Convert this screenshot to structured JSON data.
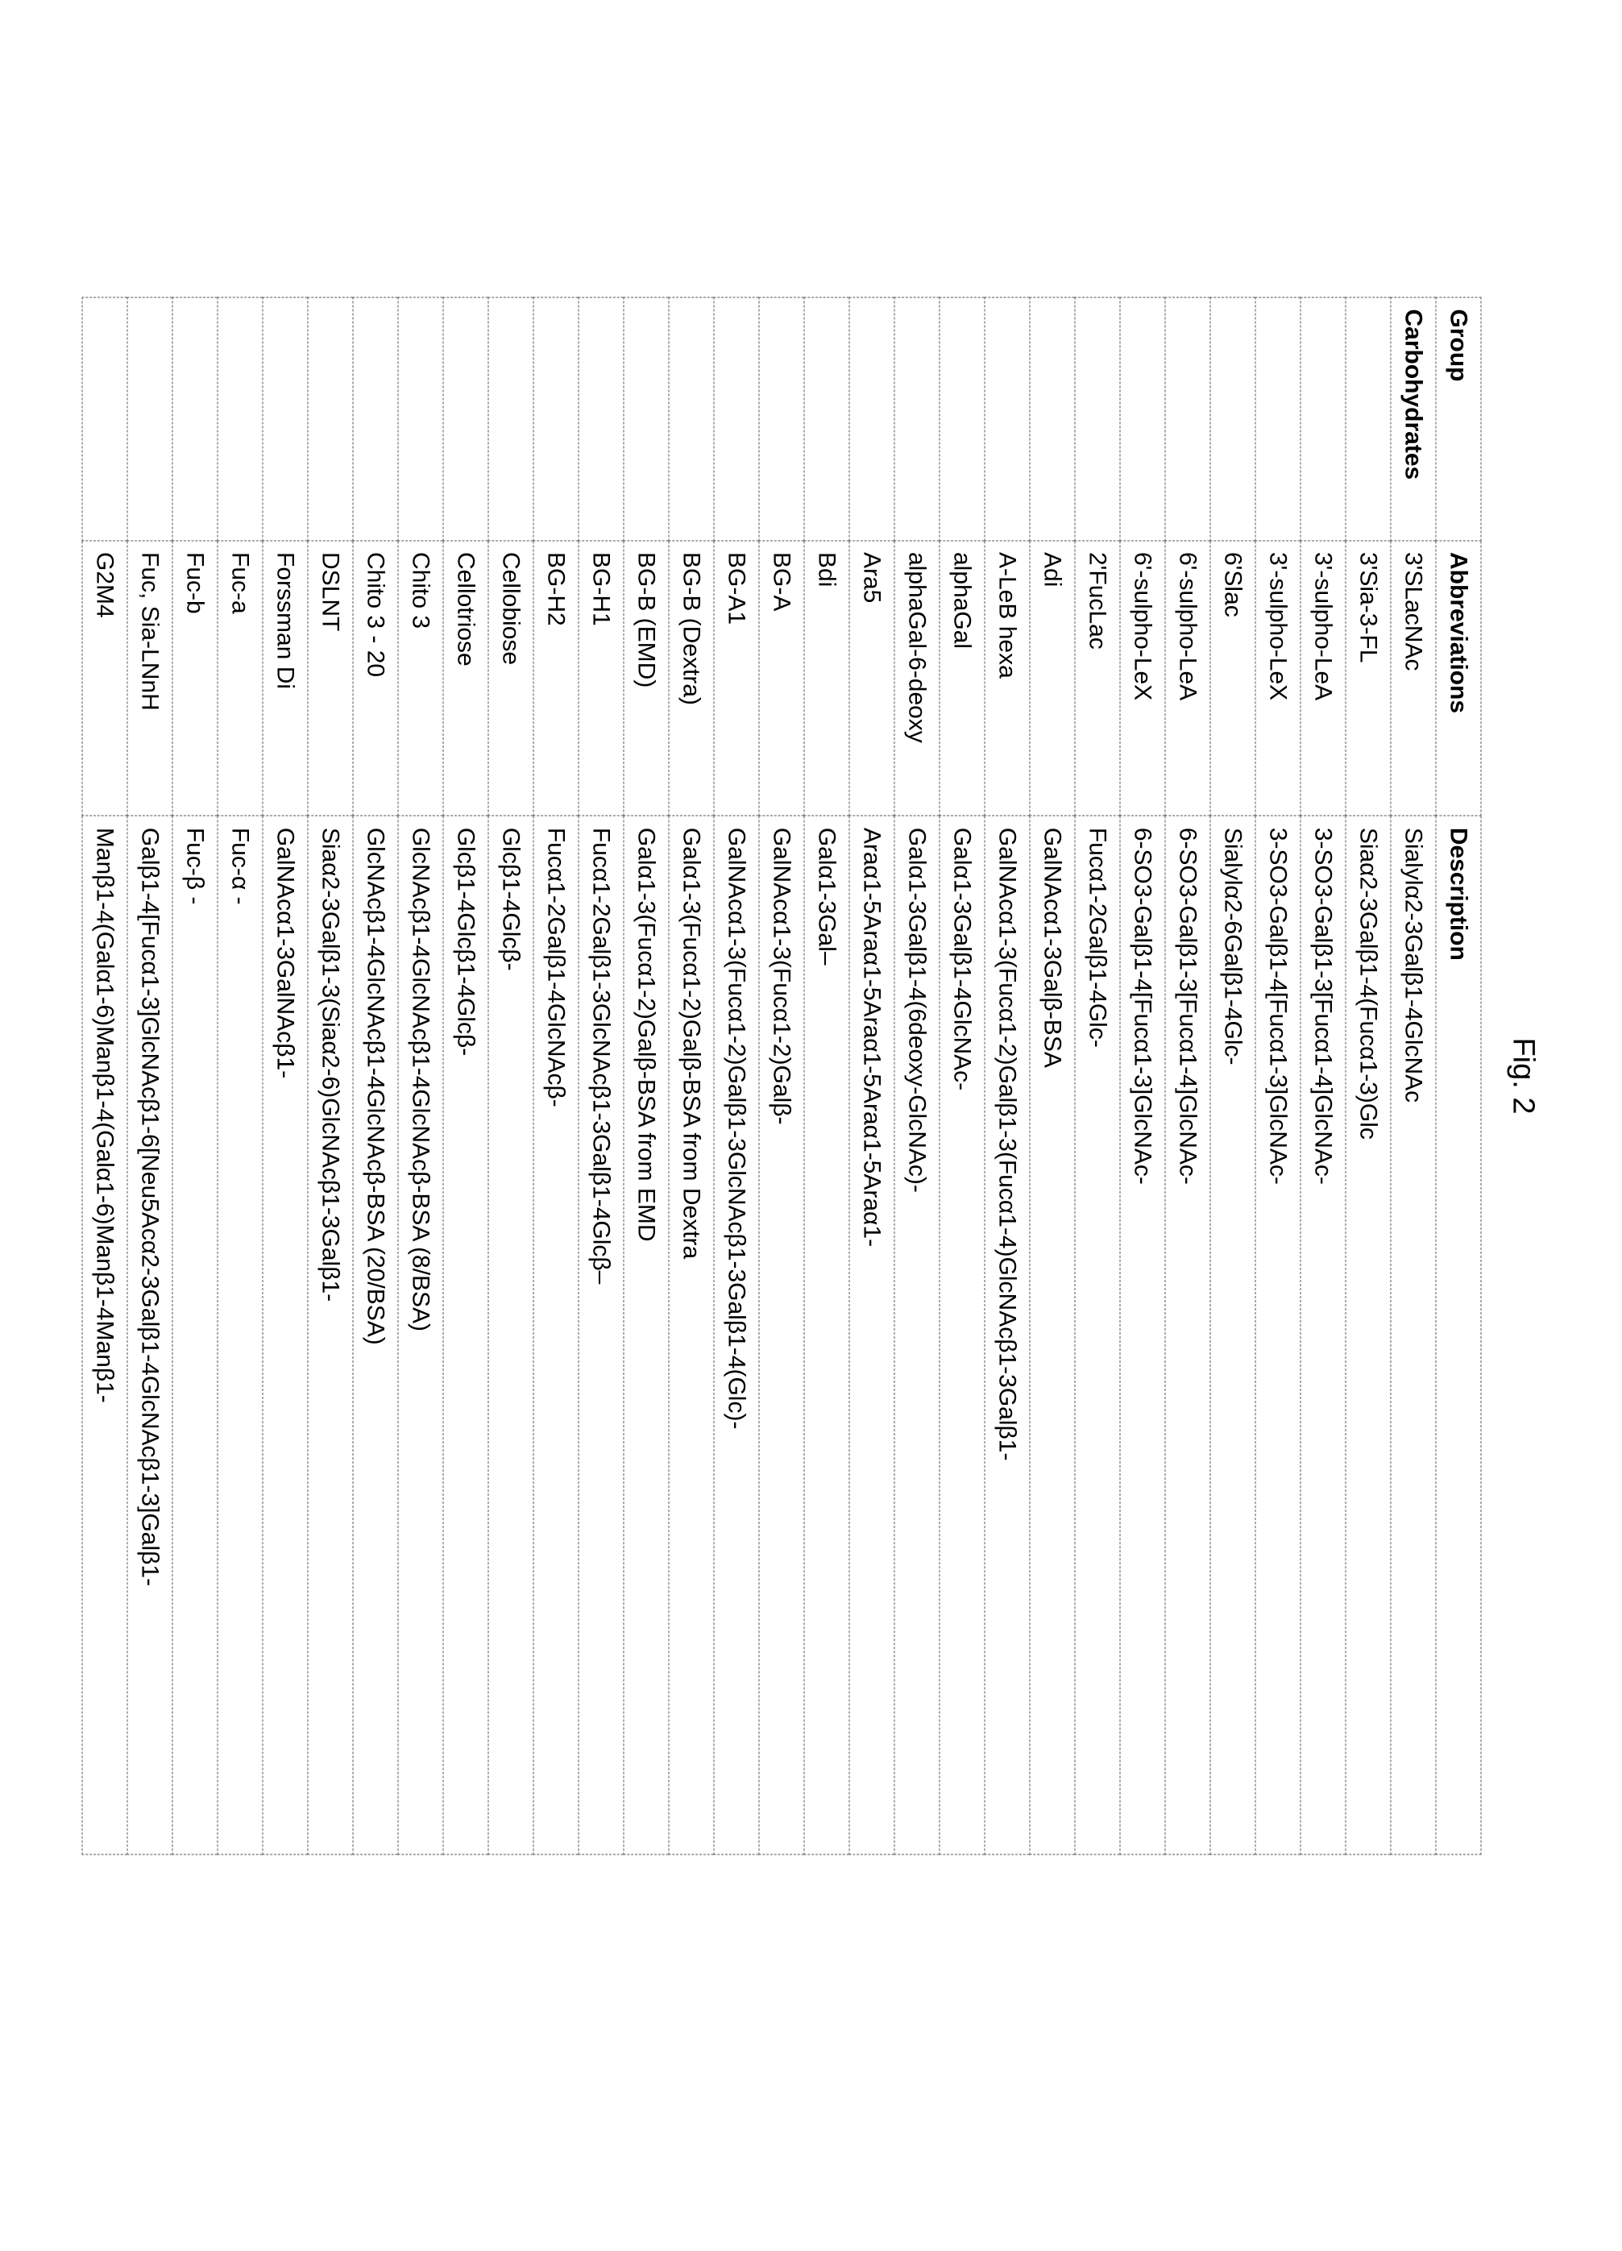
{
  "figure_label": "Fig. 2",
  "table": {
    "headers": {
      "group": "Group",
      "abbrev": "Abbreviations",
      "desc": "Description"
    },
    "group_label": "Carbohydrates",
    "rows": [
      {
        "abbrev": "3'SLacNAc",
        "desc": "Sialylα2-3Galβ1-4GlcNAc"
      },
      {
        "abbrev": "3'Sia-3-FL",
        "desc": "Siaα2-3Galβ1-4(Fucα1-3)Glc"
      },
      {
        "abbrev": "3'-sulpho-LeA",
        "desc": "3-SO3-Galβ1-3[Fucα1-4]GlcNAc-"
      },
      {
        "abbrev": "3'-sulpho-LeX",
        "desc": "3-SO3-Galβ1-4[Fucα1-3]GlcNAc-"
      },
      {
        "abbrev": "6'Slac",
        "desc": "Sialylα2-6Galβ1-4Glc-"
      },
      {
        "abbrev": "6'-sulpho-LeA",
        "desc": "6-SO3-Galβ1-3[Fucα1-4]GlcNAc-"
      },
      {
        "abbrev": "6'-sulpho-LeX",
        "desc": "6-SO3-Galβ1-4[Fucα1-3]GlcNAc-"
      },
      {
        "abbrev": "2'FucLac",
        "desc": "Fucα1-2Galβ1-4Glc-"
      },
      {
        "abbrev": "Adi",
        "desc": "GalNAcα1-3Galβ-BSA"
      },
      {
        "abbrev": "A-LeB hexa",
        "desc": "GalNAcα1-3(Fucα1-2)Galβ1-3(Fucα1-4)GlcNAcβ1-3Galβ1-"
      },
      {
        "abbrev": "alphaGal",
        "desc": "Galα1-3Galβ1-4GlcNAc-"
      },
      {
        "abbrev": "alphaGal-6-deoxy",
        "desc": "Galα1-3Galβ1-4(6deoxy-GlcNAc)-"
      },
      {
        "abbrev": "Ara5",
        "desc": "Araα1-5Araα1-5Araα1-5Araα1-5Araα1-"
      },
      {
        "abbrev": "Bdi",
        "desc": "Galα1-3Gal–"
      },
      {
        "abbrev": "BG-A",
        "desc": "GalNAcα1-3(Fucα1-2)Galβ-"
      },
      {
        "abbrev": "BG-A1",
        "desc": "GalNAcα1-3(Fucα1-2)Galβ1-3GlcNAcβ1-3Galβ1-4(Glc)-"
      },
      {
        "abbrev": "BG-B (Dextra)",
        "desc": "Galα1-3(Fucα1-2)Galβ-BSA from Dextra"
      },
      {
        "abbrev": "BG-B (EMD)",
        "desc": "Galα1-3(Fucα1-2)Galβ-BSA from EMD"
      },
      {
        "abbrev": "BG-H1",
        "desc": "Fucα1-2Galβ1-3GlcNAcβ1-3Galβ1-4Glcβ–"
      },
      {
        "abbrev": "BG-H2",
        "desc": "Fucα1-2Galβ1-4GlcNAcβ-"
      },
      {
        "abbrev": "Cellobiose",
        "desc": "Glcβ1-4Glcβ-"
      },
      {
        "abbrev": "Cellotriose",
        "desc": "Glcβ1-4Glcβ1-4Glcβ-"
      },
      {
        "abbrev": "Chito 3",
        "desc": "GlcNAcβ1-4GlcNAcβ1-4GlcNAcβ-BSA (8/BSA)"
      },
      {
        "abbrev": "Chito 3 - 20",
        "desc": "GlcNAcβ1-4GlcNAcβ1-4GlcNAcβ-BSA (20/BSA)"
      },
      {
        "abbrev": "DSLNT",
        "desc": "Siaα2-3Galβ1-3(Siaα2-6)GlcNAcβ1-3Galβ1-"
      },
      {
        "abbrev": "Forssman Di",
        "desc": "GalNAcα1-3GalNAcβ1-"
      },
      {
        "abbrev": "Fuc-a",
        "desc": "Fuc-α -"
      },
      {
        "abbrev": "Fuc-b",
        "desc": "Fuc-β -"
      },
      {
        "abbrev": "Fuc, Sia-LNnH",
        "desc": "Galβ1-4[Fucα1-3]GlcNAcβ1-6[Neu5Acα2-3Galβ1-4GlcNAcβ1-3]Galβ1-"
      },
      {
        "abbrev": "G2M4",
        "desc": "Manβ1-4(Galα1-6)Manβ1-4(Galα1-6)Manβ1-4Manβ1-"
      }
    ]
  },
  "style": {
    "border_color": "#555555",
    "background": "#ffffff",
    "header_fontweight": "bold",
    "cell_fontsize": 30,
    "label_fontsize": 38
  }
}
